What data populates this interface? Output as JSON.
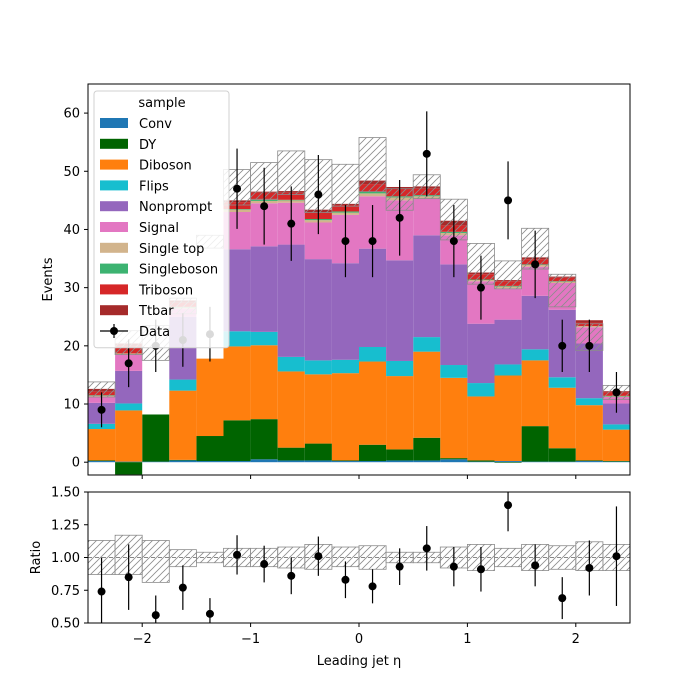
{
  "chart_data": [
    {
      "type": "bar",
      "subtype": "stacked-histogram",
      "xlabel": "",
      "ylabel": "Events",
      "xlim": [
        -2.5,
        2.5
      ],
      "ylim": [
        -2.2,
        65
      ],
      "xticks": [
        -2,
        -1,
        0,
        1,
        2
      ],
      "xtick_labels": [
        "",
        "",
        "",
        "",
        ""
      ],
      "yticks": [
        0,
        10,
        20,
        30,
        40,
        50,
        60
      ],
      "ytick_labels": [
        "0",
        "10",
        "20",
        "30",
        "40",
        "50",
        "60"
      ],
      "bin_edges": [
        -2.5,
        -2.25,
        -2.0,
        -1.75,
        -1.5,
        -1.25,
        -1.0,
        -0.75,
        -0.5,
        -0.25,
        0.0,
        0.25,
        0.5,
        0.75,
        1.0,
        1.25,
        1.5,
        1.75,
        2.0,
        2.25,
        2.5
      ],
      "legend": {
        "title": "sample",
        "placement": "upper-left"
      },
      "series": [
        {
          "name": "Conv",
          "color": "#1f77b4",
          "values": [
            0.2,
            0.1,
            0.1,
            0.3,
            0.2,
            0.2,
            0.5,
            0.3,
            0.3,
            0.2,
            0.2,
            0.3,
            0.3,
            0.5,
            0.1,
            0.2,
            0.1,
            0.1,
            0.2,
            0.1
          ]
        },
        {
          "name": "DY",
          "color": "#006400",
          "values": [
            0.1,
            -2.1,
            8.1,
            0.1,
            4.3,
            7.0,
            6.9,
            2.2,
            2.9,
            0.1,
            2.8,
            1.9,
            3.9,
            0.2,
            0.2,
            -0.1,
            6.1,
            2.3,
            0.1,
            0.1
          ]
        },
        {
          "name": "Diboson",
          "color": "#ff7f0e",
          "values": [
            5.4,
            8.8,
            0.0,
            11.9,
            13.3,
            12.7,
            12.7,
            13.1,
            11.9,
            15.0,
            14.3,
            12.6,
            14.8,
            13.8,
            11.0,
            14.7,
            11.3,
            10.4,
            9.5,
            5.4
          ]
        },
        {
          "name": "Flips",
          "color": "#17becf",
          "values": [
            0.9,
            1.2,
            0.0,
            1.9,
            0.0,
            2.6,
            2.3,
            2.5,
            2.4,
            2.3,
            2.5,
            2.6,
            2.5,
            2.2,
            2.3,
            1.9,
            1.9,
            1.8,
            1.2,
            0.9
          ]
        },
        {
          "name": "Nonprompt",
          "color": "#9467bd",
          "values": [
            3.6,
            5.6,
            0.0,
            10.8,
            0.0,
            14.1,
            14.7,
            19.3,
            17.4,
            16.6,
            16.9,
            17.3,
            17.5,
            17.3,
            10.2,
            7.7,
            9.2,
            11.6,
            9.4,
            3.6
          ]
        },
        {
          "name": "Signal",
          "color": "#e377c2",
          "values": [
            1.1,
            2.8,
            0.0,
            1.4,
            0.0,
            6.4,
            7.4,
            7.2,
            6.3,
            8.3,
            9.0,
            10.3,
            6.3,
            5.0,
            7.3,
            5.4,
            5.0,
            4.6,
            2.8,
            1.1
          ]
        },
        {
          "name": "Single top",
          "color": "#d2b48c",
          "values": [
            0.1,
            0.2,
            0.0,
            0.2,
            0.0,
            0.4,
            0.4,
            0.4,
            0.4,
            0.4,
            0.5,
            0.5,
            0.4,
            0.4,
            0.2,
            0.3,
            0.3,
            0.2,
            0.2,
            0.1
          ]
        },
        {
          "name": "Singleboson",
          "color": "#3cb371",
          "values": [
            0.1,
            0.0,
            0.0,
            0.1,
            0.0,
            0.1,
            0.2,
            0.1,
            0.2,
            0.2,
            0.3,
            0.2,
            0.2,
            0.2,
            0.1,
            0.1,
            0.1,
            0.1,
            0.0,
            0.1
          ]
        },
        {
          "name": "Triboson",
          "color": "#d62728",
          "values": [
            0.6,
            1.2,
            0.0,
            0.7,
            0.0,
            1.2,
            1.2,
            1.2,
            1.2,
            1.1,
            1.3,
            1.3,
            1.1,
            1.1,
            0.9,
            0.8,
            0.9,
            0.6,
            0.6,
            0.6
          ]
        },
        {
          "name": "Ttbar",
          "color": "#a52a2a",
          "values": [
            0.5,
            0.5,
            0.0,
            0.4,
            0.0,
            0.3,
            0.2,
            0.3,
            0.4,
            0.2,
            0.6,
            0.3,
            0.4,
            0.8,
            0.3,
            0.2,
            0.3,
            0.2,
            0.4,
            0.2
          ]
        }
      ],
      "uncertainty_band": {
        "up": [
          13.8,
          22.6,
          23.5,
          28.2,
          39.0,
          50.3,
          51.5,
          53.5,
          52.0,
          51.2,
          55.8,
          47.0,
          49.4,
          45.2,
          37.6,
          34.6,
          40.2,
          32.3,
          23.8,
          13.2
        ],
        "down": [
          11.2,
          18.5,
          17.5,
          25.5,
          36.8,
          44.2,
          45.2,
          46.0,
          42.9,
          44.0,
          46.5,
          43.3,
          45.3,
          38.2,
          30.6,
          29.8,
          33.2,
          26.7,
          19.2,
          10.8
        ]
      },
      "data_series": {
        "name": "Data",
        "x": [
          -2.375,
          -2.125,
          -1.875,
          -1.625,
          -1.375,
          -1.125,
          -0.875,
          -0.625,
          -0.375,
          -0.125,
          0.125,
          0.375,
          0.625,
          0.875,
          1.125,
          1.375,
          1.625,
          1.875,
          2.125,
          2.375
        ],
        "y": [
          9,
          17,
          20,
          21,
          22,
          47,
          44,
          41,
          46,
          38,
          38,
          42,
          53,
          38,
          30,
          45,
          34,
          20,
          20,
          12
        ],
        "err": [
          3.0,
          4.1,
          4.5,
          4.6,
          4.7,
          6.9,
          6.6,
          6.4,
          6.8,
          6.2,
          6.2,
          6.5,
          7.3,
          6.2,
          5.5,
          6.7,
          5.8,
          4.5,
          4.5,
          3.5
        ]
      }
    },
    {
      "type": "scatter",
      "subtype": "ratio",
      "xlabel": "Leading jet  η",
      "ylabel": "Ratio",
      "xlim": [
        -2.5,
        2.5
      ],
      "ylim": [
        0.5,
        1.5
      ],
      "xticks": [
        -2,
        -1,
        0,
        1,
        2
      ],
      "xtick_labels": [
        "−2",
        "−1",
        "0",
        "1",
        "2"
      ],
      "yticks": [
        0.5,
        0.75,
        1.0,
        1.25,
        1.5
      ],
      "ytick_labels": [
        "0.50",
        "0.75",
        "1.00",
        "1.25",
        "1.50"
      ],
      "reference_line": 1.0,
      "band_up": [
        1.13,
        1.17,
        1.13,
        1.06,
        1.04,
        1.07,
        1.07,
        1.08,
        1.1,
        1.08,
        1.09,
        1.04,
        1.04,
        1.08,
        1.1,
        1.07,
        1.1,
        1.09,
        1.12,
        1.1
      ],
      "band_down": [
        0.87,
        0.87,
        0.81,
        0.93,
        0.96,
        0.93,
        0.93,
        0.92,
        0.91,
        0.93,
        0.91,
        0.96,
        0.96,
        0.92,
        0.9,
        0.93,
        0.9,
        0.91,
        0.9,
        0.9
      ],
      "x": [
        -2.375,
        -2.125,
        -1.875,
        -1.625,
        -1.375,
        -1.125,
        -0.875,
        -0.625,
        -0.375,
        -0.125,
        0.125,
        0.375,
        0.625,
        0.875,
        1.125,
        1.375,
        1.625,
        1.875,
        2.125,
        2.375
      ],
      "y": [
        0.74,
        0.85,
        0.56,
        0.77,
        0.57,
        1.02,
        0.95,
        0.86,
        1.01,
        0.83,
        0.78,
        0.93,
        1.07,
        0.93,
        0.91,
        1.4,
        0.94,
        0.69,
        0.92,
        1.01
      ],
      "err": [
        0.26,
        0.25,
        0.15,
        0.17,
        0.12,
        0.15,
        0.14,
        0.14,
        0.15,
        0.14,
        0.13,
        0.14,
        0.17,
        0.15,
        0.17,
        0.2,
        0.16,
        0.16,
        0.21,
        0.38
      ]
    }
  ]
}
